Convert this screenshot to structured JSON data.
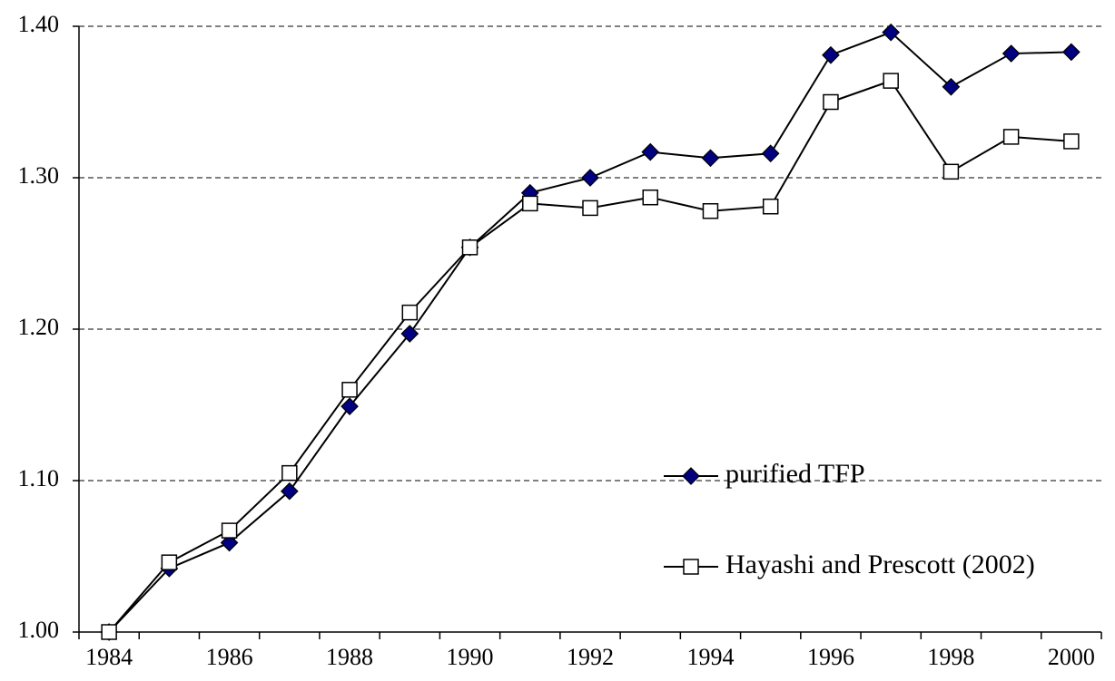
{
  "chart_data": {
    "type": "line",
    "categories": [
      "1984",
      null,
      "1986",
      null,
      "1988",
      null,
      "1990",
      null,
      "1992",
      null,
      "1994",
      null,
      "1996",
      null,
      "1998",
      null,
      "2000"
    ],
    "series": [
      {
        "name": "purified TFP",
        "color": "#000080",
        "marker": "diamond",
        "values": [
          1.0,
          1.042,
          1.059,
          1.093,
          1.149,
          1.197,
          1.254,
          1.29,
          1.3,
          1.317,
          1.313,
          1.316,
          1.381,
          1.396,
          1.36,
          1.382,
          1.383
        ]
      },
      {
        "name": "Hayashi and Prescott (2002)",
        "color": "#ffffff",
        "marker": "square",
        "values": [
          1.0,
          1.046,
          1.067,
          1.105,
          1.16,
          1.211,
          1.254,
          1.283,
          1.28,
          1.287,
          1.278,
          1.281,
          1.35,
          1.364,
          1.304,
          1.327,
          1.324
        ]
      }
    ],
    "ylim": [
      1.0,
      1.4
    ],
    "yticks": [
      {
        "value": 1.0,
        "label": "1.00"
      },
      {
        "value": 1.1,
        "label": "1.10"
      },
      {
        "value": 1.2,
        "label": "1.20"
      },
      {
        "value": 1.3,
        "label": "1.30"
      },
      {
        "value": 1.4,
        "label": "1.40"
      }
    ],
    "grid": true,
    "legend": "lower right"
  }
}
